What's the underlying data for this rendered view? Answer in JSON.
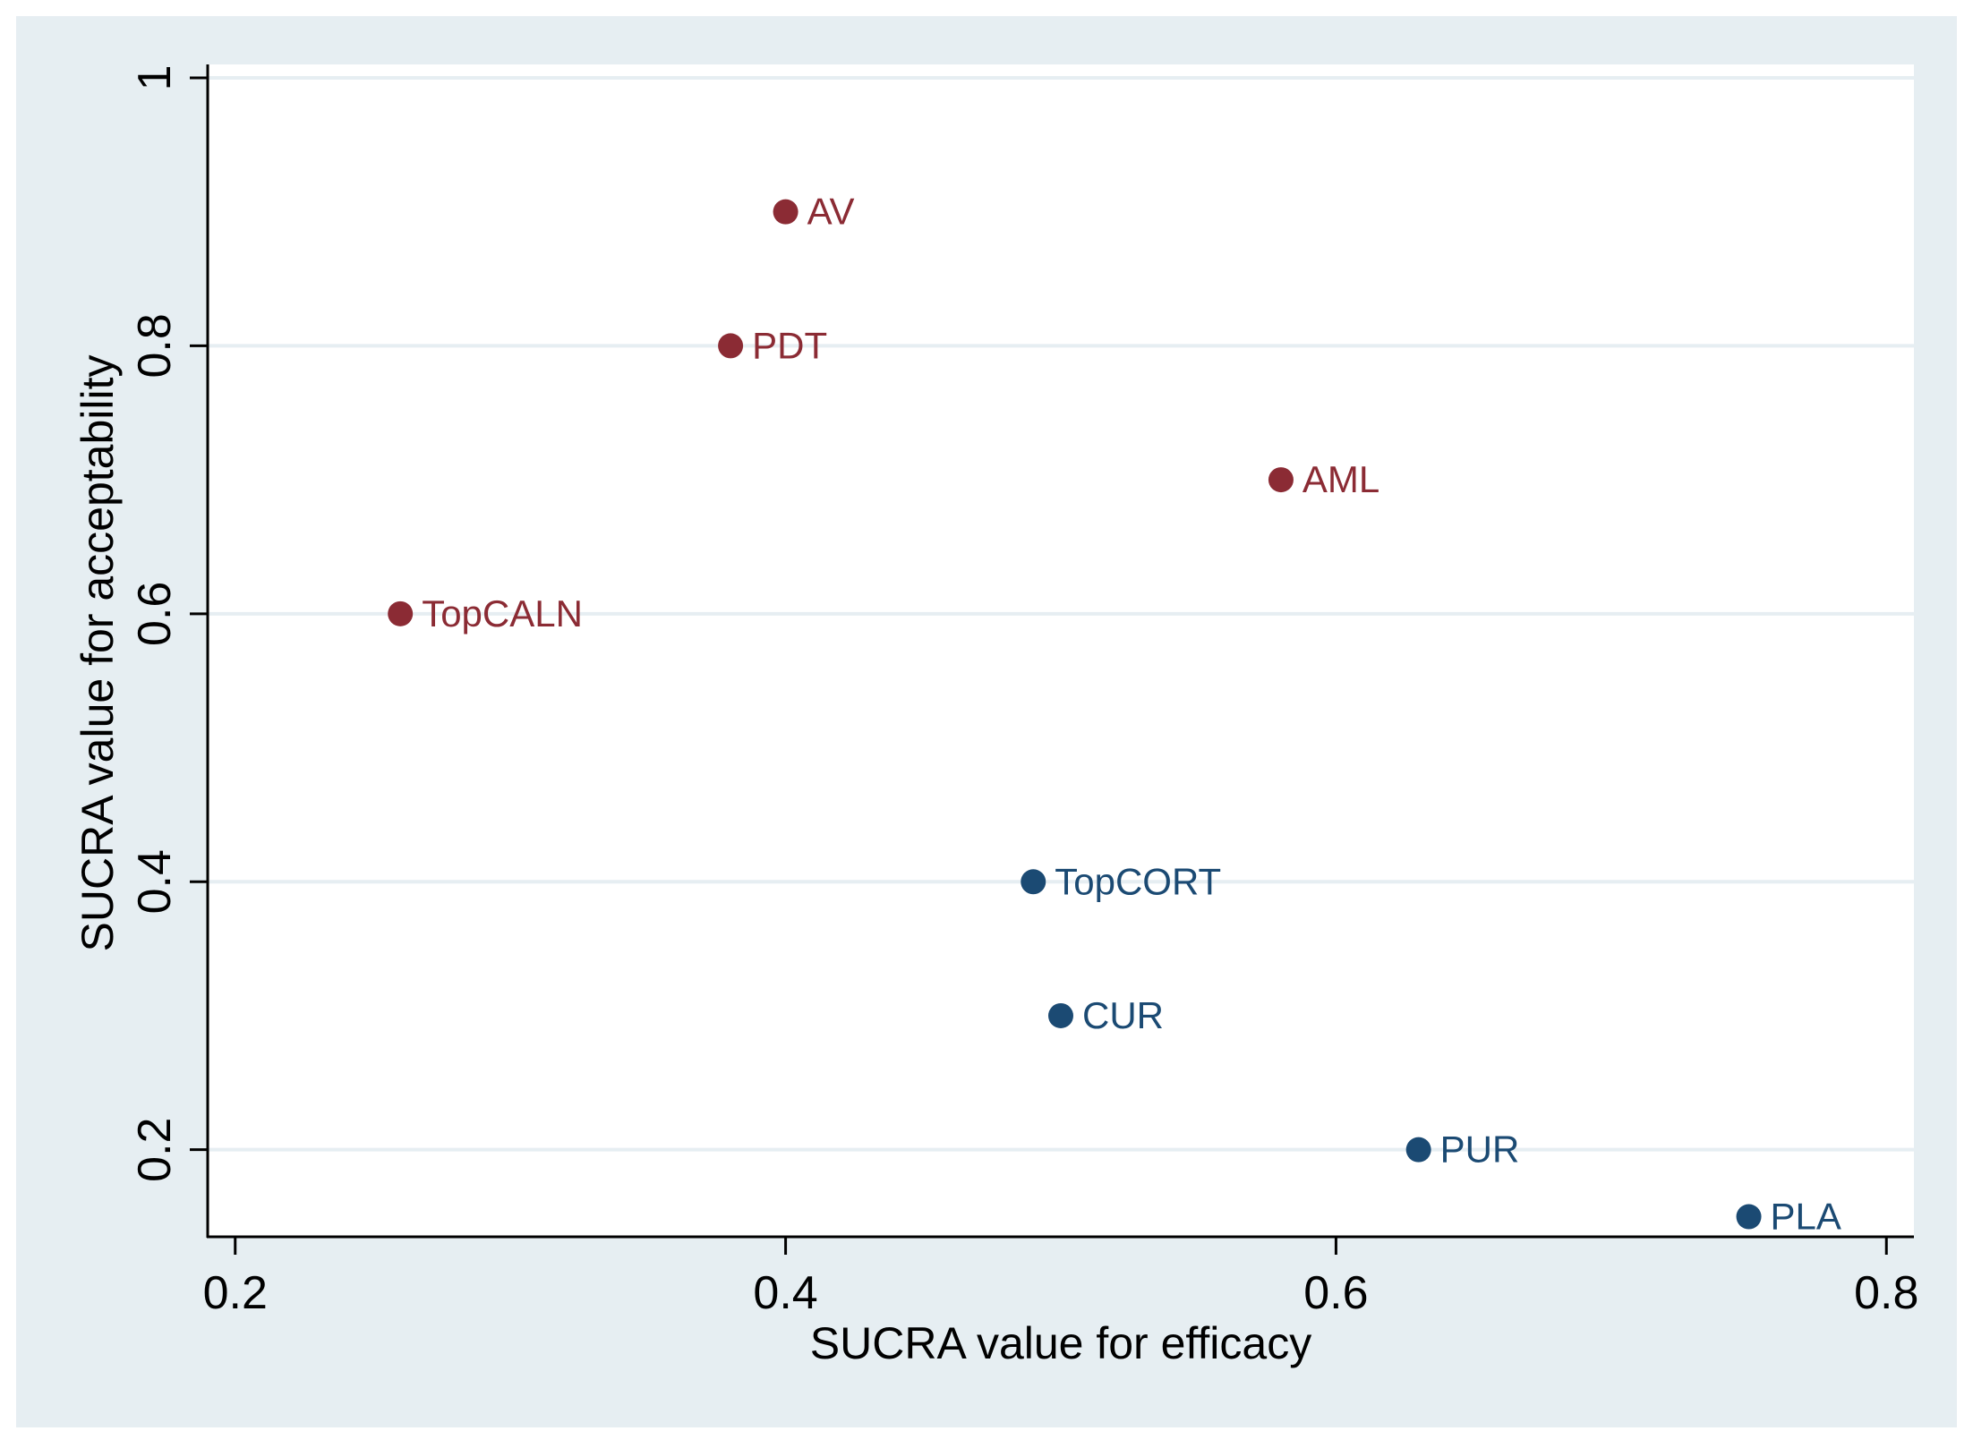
{
  "chart_data": {
    "type": "scatter",
    "title": "",
    "xlabel": "SUCRA value for efficacy",
    "ylabel": "SUCRA value for acceptability",
    "xlim": [
      0.19,
      0.81
    ],
    "ylim": [
      0.135,
      1.01
    ],
    "xticks": [
      0.2,
      0.4,
      0.6,
      0.8
    ],
    "xtick_labels": [
      "0.2",
      "0.4",
      "0.6",
      "0.8"
    ],
    "yticks": [
      0.2,
      0.4,
      0.6,
      0.8,
      1.0
    ],
    "ytick_labels": [
      "0.2",
      "0.4",
      "0.6",
      "0.8",
      "1"
    ],
    "grid": "horizontal",
    "legend": "none",
    "series": [
      {
        "name": "group-red",
        "color": "#8B2B34",
        "points": [
          {
            "label": "AV",
            "x": 0.4,
            "y": 0.9
          },
          {
            "label": "PDT",
            "x": 0.38,
            "y": 0.8
          },
          {
            "label": "AML",
            "x": 0.58,
            "y": 0.7
          },
          {
            "label": "TopCALN",
            "x": 0.26,
            "y": 0.6
          }
        ]
      },
      {
        "name": "group-blue",
        "color": "#1B4A73",
        "points": [
          {
            "label": "TopCORT",
            "x": 0.49,
            "y": 0.4
          },
          {
            "label": "CUR",
            "x": 0.5,
            "y": 0.3
          },
          {
            "label": "PUR",
            "x": 0.63,
            "y": 0.2
          },
          {
            "label": "PLA",
            "x": 0.75,
            "y": 0.15
          }
        ]
      }
    ]
  },
  "colors": {
    "outer_background": "#E6EEF2",
    "plot_background": "#FFFFFF",
    "gridline": "#E6EEF2",
    "axis": "#000000",
    "text": "#000000"
  }
}
